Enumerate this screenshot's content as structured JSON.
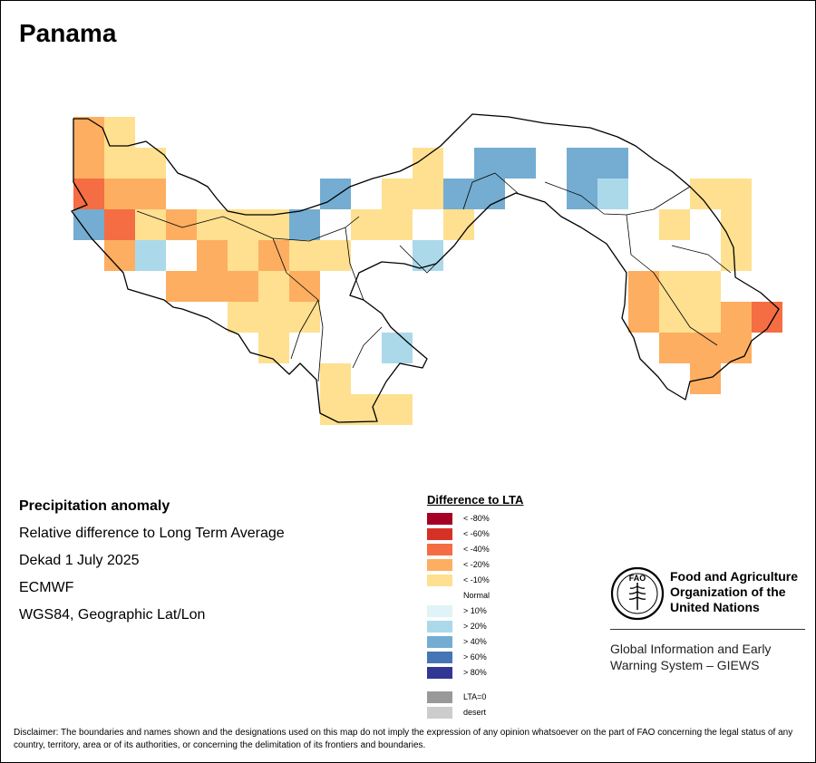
{
  "title": "Panama",
  "info": {
    "heading": "Precipitation anomaly",
    "measure": "Relative difference to Long Term Average",
    "period": "Dekad 1 July 2025",
    "source": "ECMWF",
    "projection": "WGS84, Geographic Lat/Lon"
  },
  "legend": {
    "title": "Difference to LTA",
    "classes": [
      {
        "label": "< -80%",
        "color": "#a50026"
      },
      {
        "label": "< -60%",
        "color": "#d73027"
      },
      {
        "label": "< -40%",
        "color": "#f46d43"
      },
      {
        "label": "< -20%",
        "color": "#fdae61"
      },
      {
        "label": "< -10%",
        "color": "#fee090"
      },
      {
        "label": "Normal",
        "color": "#ffffff"
      },
      {
        "label": "> 10%",
        "color": "#e0f3f8"
      },
      {
        "label": "> 20%",
        "color": "#abd9e9"
      },
      {
        "label": "> 40%",
        "color": "#74add1"
      },
      {
        "label": "> 60%",
        "color": "#4575b4"
      },
      {
        "label": "> 80%",
        "color": "#313695"
      }
    ],
    "extra": [
      {
        "label": "LTA=0",
        "color": "#999999"
      },
      {
        "label": "desert",
        "color": "#cccccc"
      }
    ]
  },
  "org": {
    "logo_text": "FAO",
    "name": "Food and Agriculture\nOrganization of the\nUnited Nations",
    "system": "Global Information and Early\nWarning System – GIEWS"
  },
  "disclaimer": "Disclaimer: The boundaries and names shown and the designations used on this map do not imply the expression of any opinion whatsoever on the part of FAO concerning the legal status of any country, territory, area or of its authorities, or concerning the delimitation of its frontiers and boundaries.",
  "anomaly_grid": [
    {
      "row": 0,
      "col": 0,
      "cls": 3
    },
    {
      "row": 0,
      "col": 1,
      "cls": 4
    },
    {
      "row": 1,
      "col": 0,
      "cls": 3
    },
    {
      "row": 1,
      "col": 1,
      "cls": 4
    },
    {
      "row": 1,
      "col": 2,
      "cls": 4
    },
    {
      "row": 1,
      "col": 11,
      "cls": 4
    },
    {
      "row": 1,
      "col": 13,
      "cls": 8
    },
    {
      "row": 1,
      "col": 14,
      "cls": 8
    },
    {
      "row": 1,
      "col": 16,
      "cls": 8
    },
    {
      "row": 1,
      "col": 17,
      "cls": 8
    },
    {
      "row": 2,
      "col": 0,
      "cls": 2
    },
    {
      "row": 2,
      "col": 1,
      "cls": 3
    },
    {
      "row": 2,
      "col": 2,
      "cls": 3
    },
    {
      "row": 2,
      "col": 8,
      "cls": 8
    },
    {
      "row": 2,
      "col": 10,
      "cls": 4
    },
    {
      "row": 2,
      "col": 11,
      "cls": 4
    },
    {
      "row": 2,
      "col": 12,
      "cls": 8
    },
    {
      "row": 2,
      "col": 13,
      "cls": 8
    },
    {
      "row": 2,
      "col": 16,
      "cls": 8
    },
    {
      "row": 2,
      "col": 17,
      "cls": 7
    },
    {
      "row": 2,
      "col": 18,
      "cls": 5
    },
    {
      "row": 2,
      "col": 19,
      "cls": 5
    },
    {
      "row": 2,
      "col": 20,
      "cls": 4
    },
    {
      "row": 2,
      "col": 21,
      "cls": 4
    },
    {
      "row": 3,
      "col": 0,
      "cls": 8
    },
    {
      "row": 3,
      "col": 1,
      "cls": 2
    },
    {
      "row": 3,
      "col": 2,
      "cls": 4
    },
    {
      "row": 3,
      "col": 3,
      "cls": 3
    },
    {
      "row": 3,
      "col": 4,
      "cls": 4
    },
    {
      "row": 3,
      "col": 5,
      "cls": 4
    },
    {
      "row": 3,
      "col": 6,
      "cls": 4
    },
    {
      "row": 3,
      "col": 7,
      "cls": 8
    },
    {
      "row": 3,
      "col": 8,
      "cls": 5
    },
    {
      "row": 3,
      "col": 9,
      "cls": 4
    },
    {
      "row": 3,
      "col": 10,
      "cls": 4
    },
    {
      "row": 3,
      "col": 11,
      "cls": 5
    },
    {
      "row": 3,
      "col": 12,
      "cls": 4
    },
    {
      "row": 3,
      "col": 18,
      "cls": 5
    },
    {
      "row": 3,
      "col": 19,
      "cls": 4
    },
    {
      "row": 3,
      "col": 20,
      "cls": 5
    },
    {
      "row": 3,
      "col": 21,
      "cls": 4
    },
    {
      "row": 4,
      "col": 1,
      "cls": 3
    },
    {
      "row": 4,
      "col": 2,
      "cls": 7
    },
    {
      "row": 4,
      "col": 4,
      "cls": 3
    },
    {
      "row": 4,
      "col": 5,
      "cls": 4
    },
    {
      "row": 4,
      "col": 6,
      "cls": 3
    },
    {
      "row": 4,
      "col": 7,
      "cls": 4
    },
    {
      "row": 4,
      "col": 8,
      "cls": 4
    },
    {
      "row": 4,
      "col": 9,
      "cls": 5
    },
    {
      "row": 4,
      "col": 11,
      "cls": 7
    },
    {
      "row": 4,
      "col": 12,
      "cls": 5
    },
    {
      "row": 4,
      "col": 19,
      "cls": 5
    },
    {
      "row": 4,
      "col": 20,
      "cls": 5
    },
    {
      "row": 4,
      "col": 21,
      "cls": 4
    },
    {
      "row": 5,
      "col": 3,
      "cls": 3
    },
    {
      "row": 5,
      "col": 4,
      "cls": 3
    },
    {
      "row": 5,
      "col": 5,
      "cls": 3
    },
    {
      "row": 5,
      "col": 6,
      "cls": 4
    },
    {
      "row": 5,
      "col": 7,
      "cls": 3
    },
    {
      "row": 5,
      "col": 8,
      "cls": 5
    },
    {
      "row": 5,
      "col": 18,
      "cls": 3
    },
    {
      "row": 5,
      "col": 19,
      "cls": 4
    },
    {
      "row": 5,
      "col": 20,
      "cls": 4
    },
    {
      "row": 5,
      "col": 21,
      "cls": 5
    },
    {
      "row": 6,
      "col": 5,
      "cls": 4
    },
    {
      "row": 6,
      "col": 6,
      "cls": 4
    },
    {
      "row": 6,
      "col": 7,
      "cls": 4
    },
    {
      "row": 6,
      "col": 8,
      "cls": 5
    },
    {
      "row": 6,
      "col": 18,
      "cls": 3
    },
    {
      "row": 6,
      "col": 19,
      "cls": 4
    },
    {
      "row": 6,
      "col": 20,
      "cls": 4
    },
    {
      "row": 6,
      "col": 21,
      "cls": 3
    },
    {
      "row": 6,
      "col": 22,
      "cls": 2
    },
    {
      "row": 7,
      "col": 6,
      "cls": 4
    },
    {
      "row": 7,
      "col": 7,
      "cls": 5
    },
    {
      "row": 7,
      "col": 8,
      "cls": 5
    },
    {
      "row": 7,
      "col": 10,
      "cls": 7
    },
    {
      "row": 7,
      "col": 19,
      "cls": 3
    },
    {
      "row": 7,
      "col": 20,
      "cls": 3
    },
    {
      "row": 7,
      "col": 21,
      "cls": 3
    },
    {
      "row": 8,
      "col": 8,
      "cls": 4
    },
    {
      "row": 8,
      "col": 9,
      "cls": 5
    },
    {
      "row": 8,
      "col": 19,
      "cls": 5
    },
    {
      "row": 8,
      "col": 20,
      "cls": 3
    },
    {
      "row": 9,
      "col": 8,
      "cls": 4
    },
    {
      "row": 9,
      "col": 9,
      "cls": 4
    },
    {
      "row": 9,
      "col": 10,
      "cls": 4
    }
  ]
}
